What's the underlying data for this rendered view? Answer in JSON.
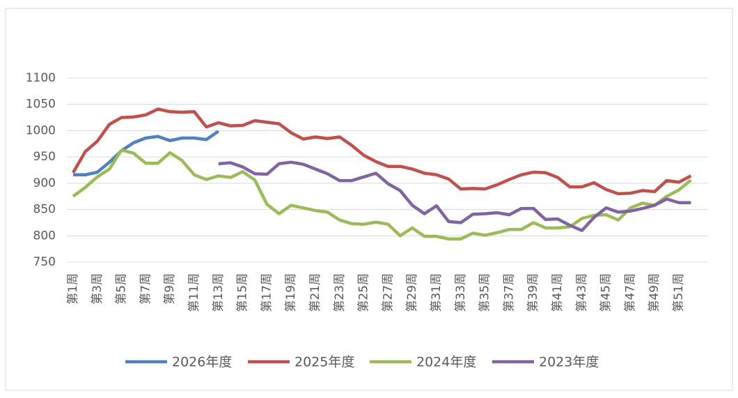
{
  "chart_data": {
    "type": "line",
    "categories": [
      "第1周",
      null,
      "第3周",
      null,
      "第5周",
      null,
      "第7周",
      null,
      "第9周",
      null,
      "第11周",
      null,
      "第13周",
      null,
      "第15周",
      null,
      "第17周",
      null,
      "第19周",
      null,
      "第21周",
      null,
      "第23周",
      null,
      "第25周",
      null,
      "第27周",
      null,
      "第29周",
      null,
      "第31周",
      null,
      "第33周",
      null,
      "第35周",
      null,
      "第37周",
      null,
      "第39周",
      null,
      "第41周",
      null,
      "第43周",
      null,
      "第45周",
      null,
      "第47周",
      null,
      "第49周",
      null,
      "第51周",
      null
    ],
    "series": [
      {
        "name": "2026年度",
        "color": "#4f81bd",
        "values": [
          916,
          916,
          921,
          940,
          962,
          977,
          986,
          989,
          981,
          986,
          986,
          983,
          999,
          null,
          null,
          null,
          null,
          null,
          null,
          null,
          null,
          null,
          null,
          null,
          null,
          null,
          null,
          null,
          null,
          null,
          null,
          null,
          null,
          null,
          null,
          null,
          null,
          null,
          null,
          null,
          null,
          null,
          null,
          null,
          null,
          null,
          null,
          null,
          null,
          null,
          null,
          null
        ]
      },
      {
        "name": "2025年度",
        "color": "#c0504d",
        "values": [
          920,
          960,
          980,
          1012,
          1025,
          1026,
          1030,
          1041,
          1036,
          1035,
          1036,
          1007,
          1015,
          1009,
          1010,
          1019,
          1016,
          1013,
          996,
          984,
          988,
          985,
          988,
          972,
          953,
          941,
          932,
          932,
          927,
          919,
          916,
          908,
          889,
          890,
          889,
          897,
          907,
          916,
          921,
          920,
          911,
          893,
          893,
          901,
          888,
          880,
          881,
          886,
          884,
          905,
          902,
          914
        ]
      },
      {
        "name": "2024年度",
        "color": "#9bbb59",
        "values": [
          875,
          892,
          912,
          927,
          963,
          957,
          938,
          938,
          958,
          943,
          916,
          907,
          914,
          911,
          922,
          906,
          860,
          842,
          858,
          853,
          848,
          845,
          830,
          823,
          822,
          826,
          822,
          800,
          815,
          799,
          799,
          794,
          794,
          805,
          801,
          806,
          812,
          812,
          825,
          815,
          815,
          817,
          833,
          839,
          840,
          830,
          853,
          862,
          858,
          875,
          887,
          906
        ]
      },
      {
        "name": "2023年度",
        "color": "#8064a2",
        "values": [
          null,
          null,
          null,
          null,
          null,
          null,
          null,
          null,
          null,
          null,
          null,
          null,
          937,
          939,
          931,
          918,
          917,
          937,
          940,
          936,
          927,
          918,
          905,
          905,
          912,
          919,
          899,
          886,
          858,
          842,
          857,
          827,
          825,
          841,
          842,
          844,
          840,
          852,
          852,
          831,
          832,
          820,
          810,
          835,
          853,
          845,
          847,
          852,
          858,
          870,
          863,
          863
        ]
      }
    ],
    "ylim": [
      750,
      1100
    ],
    "yticks": [
      750,
      800,
      850,
      900,
      950,
      1000,
      1050,
      1100
    ],
    "grid": true,
    "legend": "bottom"
  }
}
